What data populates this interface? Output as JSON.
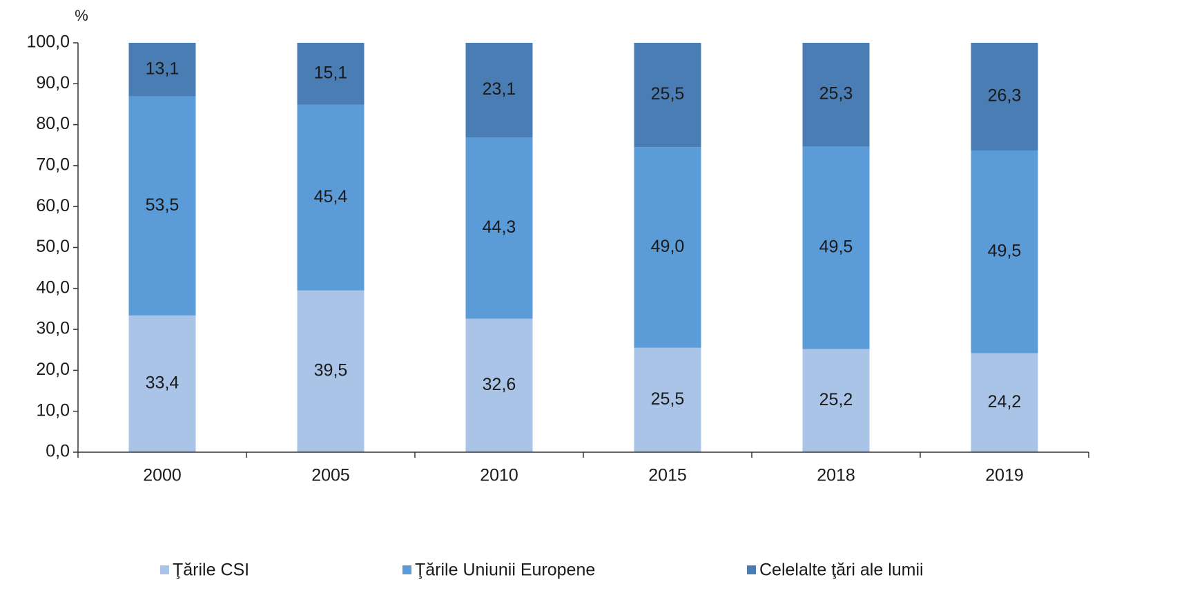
{
  "chart_data": {
    "type": "stacked_bar",
    "y_label": "%",
    "categories": [
      "2000",
      "2005",
      "2010",
      "2015",
      "2018",
      "2019"
    ],
    "series": [
      {
        "name": "Ţările CSI",
        "color": "#a9c4e6",
        "values": [
          33.4,
          39.5,
          32.6,
          25.5,
          25.2,
          24.2
        ],
        "value_labels": [
          "33,4",
          "39,5",
          "32,6",
          "25,5",
          "25,2",
          "24,2"
        ]
      },
      {
        "name": "Ţările Uniunii Europene",
        "color": "#5b9bd8",
        "values": [
          53.5,
          45.4,
          44.3,
          49.0,
          49.5,
          49.5
        ],
        "value_labels": [
          "53,5",
          "45,4",
          "44,3",
          "49,0",
          "49,5",
          "49,5"
        ]
      },
      {
        "name": "Celelalte ţări ale lumii",
        "color": "#4a7db4",
        "values": [
          13.1,
          15.1,
          23.1,
          25.5,
          25.3,
          26.3
        ],
        "value_labels": [
          "13,1",
          "15,1",
          "23,1",
          "25,5",
          "25,3",
          "26,3"
        ]
      }
    ],
    "ylim": [
      0,
      100
    ],
    "yticks": [
      {
        "value": 0,
        "label": "0,0"
      },
      {
        "value": 10,
        "label": "10,0"
      },
      {
        "value": 20,
        "label": "20,0"
      },
      {
        "value": 30,
        "label": "30,0"
      },
      {
        "value": 40,
        "label": "40,0"
      },
      {
        "value": 50,
        "label": "50,0"
      },
      {
        "value": 60,
        "label": "60,0"
      },
      {
        "value": 70,
        "label": "70,0"
      },
      {
        "value": 80,
        "label": "80,0"
      },
      {
        "value": 90,
        "label": "90,0"
      },
      {
        "value": 100,
        "label": "100,0"
      }
    ],
    "legend": "bottom"
  }
}
